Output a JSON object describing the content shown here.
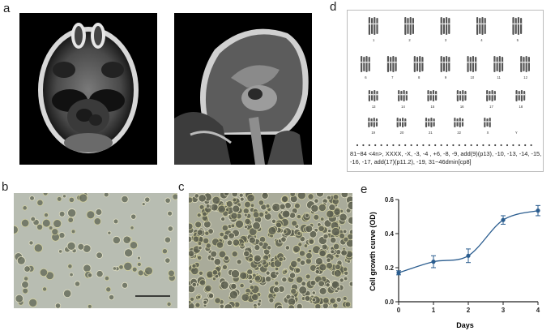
{
  "figure": {
    "panels": {
      "a": "a",
      "b": "b",
      "c": "c",
      "d": "d",
      "e": "e"
    },
    "karyotype": {
      "caption": "81~84 <4n>, XXXX, -X, -3, -4 , +6, -8, -9, add(9)(p13), -10, -13, -14, -15, -16, -17, add(17)(p11.2), -19, 31~46dmin[cp8]",
      "row1_numbers": [
        "1",
        "2",
        "3",
        "4",
        "5"
      ],
      "row2_numbers": [
        "6",
        "7",
        "8",
        "9",
        "10",
        "11",
        "12"
      ],
      "row3_numbers": [
        "13",
        "14",
        "15",
        "16",
        "17",
        "18"
      ],
      "row4_numbers": [
        "19",
        "20",
        "21",
        "22",
        "X",
        "Y"
      ]
    }
  },
  "chart_data": {
    "type": "line",
    "ylabel": "Cell growth curve (OD)",
    "xlabel": "Days",
    "xlim": [
      0,
      4
    ],
    "ylim": [
      0,
      0.6
    ],
    "x_ticks": [
      "0",
      "1",
      "2",
      "3",
      "4"
    ],
    "y_ticks": [
      "0.0",
      "0.2",
      "0.4",
      "0.6"
    ],
    "series": [
      {
        "x": [
          0,
          1,
          2,
          3,
          4
        ],
        "values": [
          0.17,
          0.235,
          0.27,
          0.48,
          0.535
        ],
        "errors": [
          0.012,
          0.035,
          0.04,
          0.025,
          0.03
        ],
        "color": "#2b5d8f"
      }
    ]
  }
}
